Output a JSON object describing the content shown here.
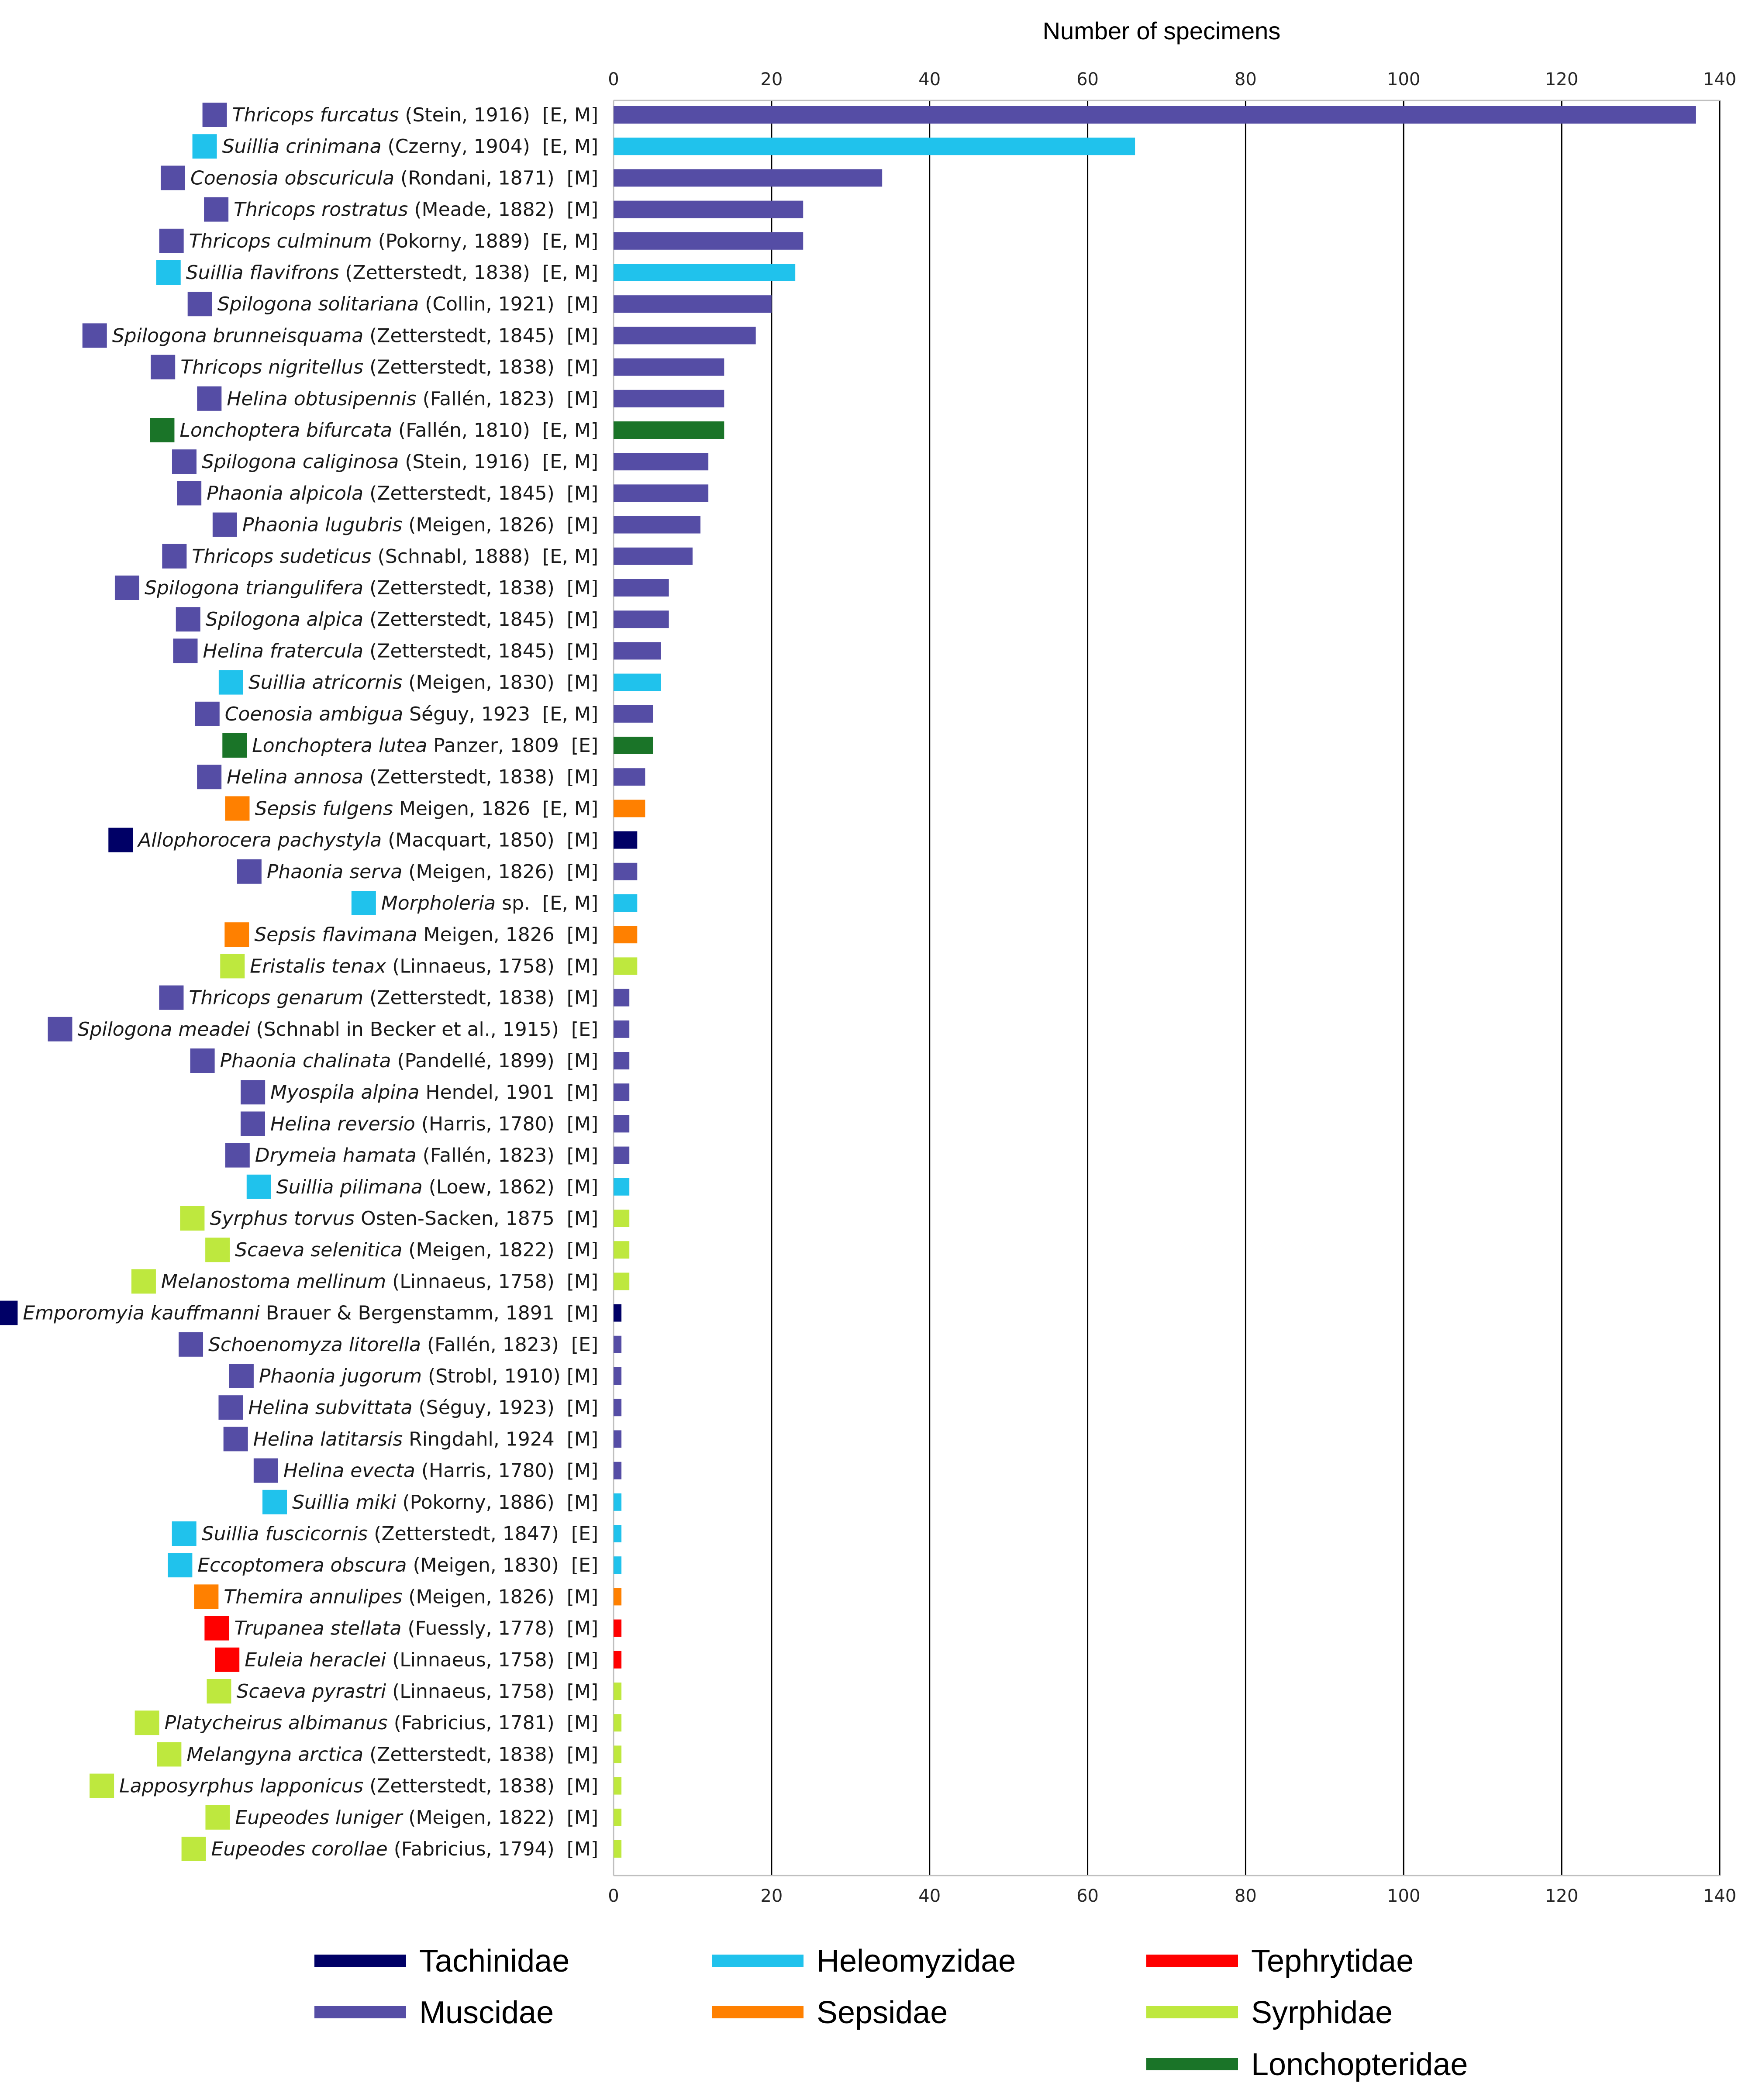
{
  "chart_data": {
    "type": "bar",
    "orientation": "horizontal",
    "title": "",
    "xlabel": "Number of specimens",
    "ylabel": "",
    "xlim": [
      0,
      140
    ],
    "xticks": [
      0,
      20,
      40,
      60,
      80,
      100,
      120,
      140
    ],
    "grid": true,
    "legend_position": "bottom",
    "families": {
      "Tachinidae": "#000066",
      "Muscidae": "#554DA5",
      "Heleomyzidae": "#20C2EC",
      "Sepsidae": "#FF8000",
      "Tephrytidae": "#FF0000",
      "Syrphidae": "#BEE83E",
      "Lonchopteridae": "#1A7428"
    },
    "legend": [
      {
        "label": "Tachinidae",
        "family": "Tachinidae"
      },
      {
        "label": "Muscidae",
        "family": "Muscidae"
      },
      {
        "label": "Heleomyzidae",
        "family": "Heleomyzidae"
      },
      {
        "label": "Sepsidae",
        "family": "Sepsidae"
      },
      {
        "label": "Tephrytidae",
        "family": "Tephrytidae"
      },
      {
        "label": "Syrphidae",
        "family": "Syrphidae"
      },
      {
        "label": "Lonchopteridae",
        "family": "Lonchopteridae"
      }
    ],
    "rows": [
      {
        "species": "Thricops furcatus",
        "author": " (Stein, 1916)  [E, M]",
        "family": "Muscidae",
        "value": 137
      },
      {
        "species": "Suillia crinimana",
        "author": " (Czerny, 1904)  [E, M]",
        "family": "Heleomyzidae",
        "value": 66
      },
      {
        "species": "Coenosia obscuricula",
        "author": " (Rondani, 1871)  [M]",
        "family": "Muscidae",
        "value": 34
      },
      {
        "species": "Thricops rostratus",
        "author": " (Meade, 1882)  [M]",
        "family": "Muscidae",
        "value": 24
      },
      {
        "species": "Thricops culminum",
        "author": " (Pokorny, 1889)  [E, M]",
        "family": "Muscidae",
        "value": 24
      },
      {
        "species": "Suillia flavifrons",
        "author": " (Zetterstedt, 1838)  [E, M]",
        "family": "Heleomyzidae",
        "value": 23
      },
      {
        "species": "Spilogona solitariana",
        "author": " (Collin, 1921)  [M]",
        "family": "Muscidae",
        "value": 20
      },
      {
        "species": "Spilogona brunneisquama",
        "author": " (Zetterstedt, 1845)  [M]",
        "family": "Muscidae",
        "value": 18
      },
      {
        "species": "Thricops nigritellus",
        "author": " (Zetterstedt, 1838)  [M]",
        "family": "Muscidae",
        "value": 14
      },
      {
        "species": "Helina obtusipennis",
        "author": " (Fallén, 1823)  [M]",
        "family": "Muscidae",
        "value": 14
      },
      {
        "species": "Lonchoptera bifurcata",
        "author": " (Fallén, 1810)  [E, M]",
        "family": "Lonchopteridae",
        "value": 14
      },
      {
        "species": "Spilogona caliginosa",
        "author": " (Stein, 1916)  [E, M]",
        "family": "Muscidae",
        "value": 12
      },
      {
        "species": "Phaonia alpicola",
        "author": " (Zetterstedt, 1845)  [M]",
        "family": "Muscidae",
        "value": 12
      },
      {
        "species": "Phaonia lugubris",
        "author": " (Meigen, 1826)  [M]",
        "family": "Muscidae",
        "value": 11
      },
      {
        "species": "Thricops sudeticus",
        "author": " (Schnabl, 1888)  [E, M]",
        "family": "Muscidae",
        "value": 10
      },
      {
        "species": "Spilogona triangulifera",
        "author": " (Zetterstedt, 1838)  [M]",
        "family": "Muscidae",
        "value": 7
      },
      {
        "species": "Spilogona alpica",
        "author": " (Zetterstedt, 1845)  [M]",
        "family": "Muscidae",
        "value": 7
      },
      {
        "species": "Helina fratercula",
        "author": " (Zetterstedt, 1845)  [M]",
        "family": "Muscidae",
        "value": 6
      },
      {
        "species": "Suillia atricornis",
        "author": " (Meigen, 1830)  [M]",
        "family": "Heleomyzidae",
        "value": 6
      },
      {
        "species": "Coenosia ambigua",
        "author": " Séguy, 1923  [E, M]",
        "family": "Muscidae",
        "value": 5
      },
      {
        "species": "Lonchoptera lutea",
        "author": " Panzer, 1809  [E]",
        "family": "Lonchopteridae",
        "value": 5
      },
      {
        "species": "Helina annosa",
        "author": " (Zetterstedt, 1838)  [M]",
        "family": "Muscidae",
        "value": 4
      },
      {
        "species": "Sepsis fulgens",
        "author": " Meigen, 1826  [E, M]",
        "family": "Sepsidae",
        "value": 4
      },
      {
        "species": "Allophorocera pachystyla",
        "author": " (Macquart, 1850)  [M]",
        "family": "Tachinidae",
        "value": 3
      },
      {
        "species": "Phaonia serva",
        "author": " (Meigen, 1826)  [M]",
        "family": "Muscidae",
        "value": 3
      },
      {
        "species": "Morpholeria",
        "author": " sp.  [E, M]",
        "family": "Heleomyzidae",
        "value": 3
      },
      {
        "species": "Sepsis flavimana",
        "author": " Meigen, 1826  [M]",
        "family": "Sepsidae",
        "value": 3
      },
      {
        "species": "Eristalis tenax",
        "author": " (Linnaeus, 1758)  [M]",
        "family": "Syrphidae",
        "value": 3
      },
      {
        "species": "Thricops genarum",
        "author": " (Zetterstedt, 1838)  [M]",
        "family": "Muscidae",
        "value": 2
      },
      {
        "species": "Spilogona meadei",
        "author": " (Schnabl in Becker et al., 1915)  [E]",
        "family": "Muscidae",
        "value": 2
      },
      {
        "species": "Phaonia chalinata",
        "author": " (Pandellé, 1899)  [M]",
        "family": "Muscidae",
        "value": 2
      },
      {
        "species": "Myospila alpina",
        "author": " Hendel, 1901  [M]",
        "family": "Muscidae",
        "value": 2
      },
      {
        "species": "Helina reversio",
        "author": " (Harris, 1780)  [M]",
        "family": "Muscidae",
        "value": 2
      },
      {
        "species": "Drymeia hamata",
        "author": " (Fallén, 1823)  [M]",
        "family": "Muscidae",
        "value": 2
      },
      {
        "species": "Suillia pilimana",
        "author": " (Loew, 1862)  [M]",
        "family": "Heleomyzidae",
        "value": 2
      },
      {
        "species": "Syrphus torvus",
        "author": " Osten-Sacken, 1875  [M]",
        "family": "Syrphidae",
        "value": 2
      },
      {
        "species": "Scaeva selenitica",
        "author": " (Meigen, 1822)  [M]",
        "family": "Syrphidae",
        "value": 2
      },
      {
        "species": "Melanostoma mellinum",
        "author": " (Linnaeus, 1758)  [M]",
        "family": "Syrphidae",
        "value": 2
      },
      {
        "species": "Emporomyia kauffmanni",
        "author": " Brauer & Bergenstamm, 1891  [M]",
        "family": "Tachinidae",
        "value": 1
      },
      {
        "species": "Schoenomyza litorella",
        "author": " (Fallén, 1823)  [E]",
        "family": "Muscidae",
        "value": 1
      },
      {
        "species": "Phaonia jugorum",
        "author": " (Strobl, 1910) [M]",
        "family": "Muscidae",
        "value": 1
      },
      {
        "species": "Helina subvittata",
        "author": " (Séguy, 1923)  [M]",
        "family": "Muscidae",
        "value": 1
      },
      {
        "species": "Helina latitarsis",
        "author": " Ringdahl, 1924  [M]",
        "family": "Muscidae",
        "value": 1
      },
      {
        "species": "Helina evecta",
        "author": " (Harris, 1780)  [M]",
        "family": "Muscidae",
        "value": 1
      },
      {
        "species": "Suillia miki",
        "author": " (Pokorny, 1886)  [M]",
        "family": "Heleomyzidae",
        "value": 1
      },
      {
        "species": "Suillia fuscicornis",
        "author": " (Zetterstedt, 1847)  [E]",
        "family": "Heleomyzidae",
        "value": 1
      },
      {
        "species": "Eccoptomera obscura",
        "author": " (Meigen, 1830)  [E]",
        "family": "Heleomyzidae",
        "value": 1
      },
      {
        "species": "Themira annulipes",
        "author": " (Meigen, 1826)  [M]",
        "family": "Sepsidae",
        "value": 1
      },
      {
        "species": "Trupanea stellata",
        "author": " (Fuessly, 1778)  [M]",
        "family": "Tephrytidae",
        "value": 1
      },
      {
        "species": "Euleia heraclei",
        "author": " (Linnaeus, 1758)  [M]",
        "family": "Tephrytidae",
        "value": 1
      },
      {
        "species": "Scaeva pyrastri",
        "author": " (Linnaeus, 1758)  [M]",
        "family": "Syrphidae",
        "value": 1
      },
      {
        "species": "Platycheirus albimanus",
        "author": " (Fabricius, 1781)  [M]",
        "family": "Syrphidae",
        "value": 1
      },
      {
        "species": "Melangyna arctica",
        "author": " (Zetterstedt, 1838)  [M]",
        "family": "Syrphidae",
        "value": 1
      },
      {
        "species": "Lapposyrphus lapponicus",
        "author": " (Zetterstedt, 1838)  [M]",
        "family": "Syrphidae",
        "value": 1
      },
      {
        "species": "Eupeodes luniger",
        "author": " (Meigen, 1822)  [M]",
        "family": "Syrphidae",
        "value": 1
      },
      {
        "species": "Eupeodes corollae",
        "author": " (Fabricius, 1794)  [M]",
        "family": "Syrphidae",
        "value": 1
      }
    ]
  }
}
